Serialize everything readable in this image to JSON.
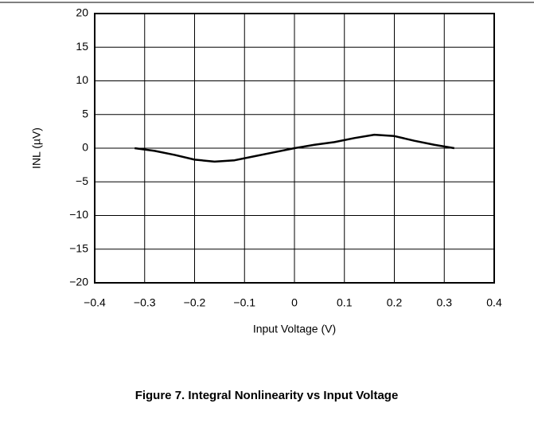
{
  "chart_data": {
    "type": "line",
    "title": "Figure 7. Integral Nonlinearity vs Input Voltage",
    "xlabel": "Input Voltage (V)",
    "ylabel": "INL (µV)",
    "x": [
      -0.32,
      -0.28,
      -0.24,
      -0.2,
      -0.16,
      -0.12,
      -0.08,
      -0.04,
      0,
      0.04,
      0.08,
      0.12,
      0.16,
      0.2,
      0.24,
      0.28,
      0.32
    ],
    "series": [
      {
        "name": "INL",
        "color": "#000000",
        "values": [
          0,
          -0.4,
          -1.0,
          -1.7,
          -2,
          -1.8,
          -1.2,
          -0.6,
          0,
          0.5,
          0.9,
          1.5,
          2,
          1.8,
          1.1,
          0.5,
          0
        ]
      }
    ],
    "xlim": [
      -0.4,
      0.4
    ],
    "xticks": [
      {
        "value": -0.4,
        "label": "−0.4"
      },
      {
        "value": -0.3,
        "label": "−0.3"
      },
      {
        "value": -0.2,
        "label": "−0.2"
      },
      {
        "value": -0.1,
        "label": "−0.1"
      },
      0,
      0.1,
      0.2,
      0.3,
      0.4
    ],
    "ylim": [
      -20,
      20
    ],
    "yticks": [
      {
        "value": -20,
        "label": "−20"
      },
      {
        "value": -15,
        "label": "−15"
      },
      {
        "value": -10,
        "label": "−10"
      },
      {
        "value": -5,
        "label": "−5"
      },
      0,
      5,
      10,
      15,
      20
    ],
    "grid": true
  }
}
